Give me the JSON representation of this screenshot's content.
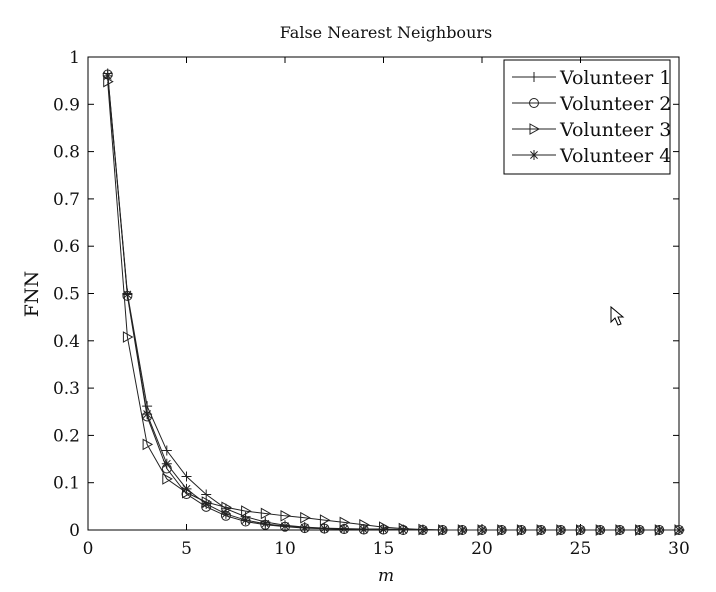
{
  "chart_data": {
    "type": "line",
    "title": "False Nearest Neighbours",
    "xlabel": "m",
    "ylabel": "FNN",
    "xlim": [
      0,
      30
    ],
    "ylim": [
      0,
      1
    ],
    "xticks": [
      0,
      5,
      10,
      15,
      20,
      25,
      30
    ],
    "yticks": [
      0,
      0.1,
      0.2,
      0.3,
      0.4,
      0.5,
      0.6,
      0.7,
      0.8,
      0.9,
      1
    ],
    "grid": false,
    "legend_position": "top-right",
    "x": [
      1,
      2,
      3,
      4,
      5,
      6,
      7,
      8,
      9,
      10,
      11,
      12,
      13,
      14,
      15,
      16,
      17,
      18,
      19,
      20,
      21,
      22,
      23,
      24,
      25,
      26,
      27,
      28,
      29,
      30
    ],
    "series": [
      {
        "name": "Volunteer 1",
        "marker": "plus",
        "values": [
          0.965,
          0.5,
          0.262,
          0.168,
          0.113,
          0.075,
          0.045,
          0.028,
          0.017,
          0.01,
          0.006,
          0.004,
          0.003,
          0.002,
          0.002,
          0.001,
          0.001,
          0,
          0,
          0,
          0,
          0,
          0,
          0,
          0,
          0,
          0,
          0,
          0,
          0
        ]
      },
      {
        "name": "Volunteer 2",
        "marker": "circle",
        "values": [
          0.963,
          0.495,
          0.24,
          0.13,
          0.076,
          0.049,
          0.03,
          0.018,
          0.011,
          0.007,
          0.004,
          0.003,
          0.002,
          0.001,
          0.001,
          0,
          0,
          0,
          0,
          0,
          0,
          0,
          0,
          0,
          0,
          0,
          0,
          0,
          0,
          0
        ]
      },
      {
        "name": "Volunteer 3",
        "marker": "triangle-right",
        "values": [
          0.948,
          0.408,
          0.181,
          0.108,
          0.079,
          0.059,
          0.048,
          0.04,
          0.035,
          0.03,
          0.026,
          0.021,
          0.016,
          0.011,
          0.006,
          0.003,
          0.001,
          0,
          0,
          0,
          0,
          0,
          0,
          0,
          0,
          0,
          0,
          0,
          0,
          0
        ]
      },
      {
        "name": "Volunteer 4",
        "marker": "asterisk",
        "values": [
          0.96,
          0.498,
          0.245,
          0.14,
          0.087,
          0.055,
          0.034,
          0.021,
          0.013,
          0.008,
          0.005,
          0.003,
          0.002,
          0.001,
          0.001,
          0,
          0,
          0,
          0,
          0,
          0,
          0,
          0,
          0,
          0,
          0,
          0,
          0,
          0,
          0
        ]
      }
    ]
  },
  "cursor_icon": "pointer-arrow-icon"
}
